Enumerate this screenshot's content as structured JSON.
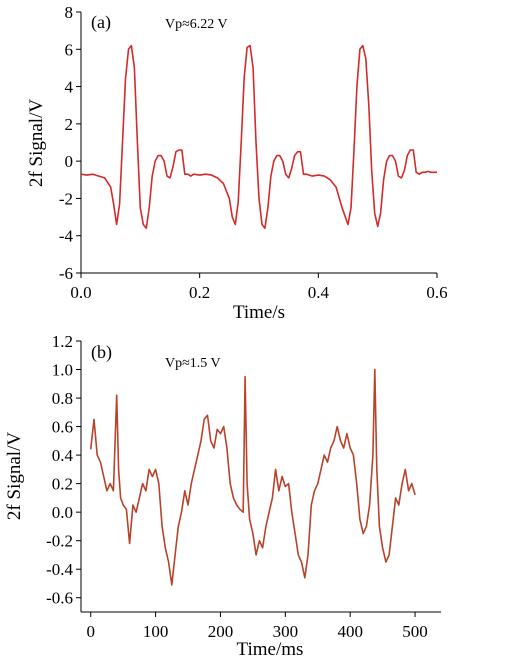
{
  "chart_data": [
    {
      "type": "line",
      "panel_label": "(a)",
      "annotation": "Vp≈6.22 V",
      "xlabel": "Time/s",
      "ylabel": "2f Signal/V",
      "xlim": [
        0.0,
        0.6
      ],
      "ylim": [
        -6,
        8
      ],
      "xticks": [
        "0.0",
        "0.2",
        "0.4",
        "0.6"
      ],
      "yticks": [
        "-6",
        "-4",
        "-2",
        "0",
        "2",
        "4",
        "6",
        "8"
      ],
      "grid": false,
      "series": [
        {
          "color": "#d42a2a",
          "x": [
            0.0,
            0.01,
            0.02,
            0.03,
            0.04,
            0.05,
            0.055,
            0.06,
            0.065,
            0.07,
            0.075,
            0.08,
            0.085,
            0.09,
            0.095,
            0.1,
            0.105,
            0.11,
            0.115,
            0.12,
            0.125,
            0.13,
            0.135,
            0.14,
            0.145,
            0.15,
            0.155,
            0.16,
            0.165,
            0.17,
            0.175,
            0.18,
            0.185,
            0.19,
            0.2,
            0.21,
            0.22,
            0.23,
            0.24,
            0.25,
            0.255,
            0.26,
            0.265,
            0.27,
            0.275,
            0.28,
            0.285,
            0.29,
            0.295,
            0.3,
            0.305,
            0.31,
            0.315,
            0.32,
            0.325,
            0.33,
            0.335,
            0.34,
            0.345,
            0.35,
            0.355,
            0.36,
            0.365,
            0.37,
            0.375,
            0.38,
            0.39,
            0.4,
            0.41,
            0.42,
            0.43,
            0.44,
            0.45,
            0.455,
            0.46,
            0.465,
            0.47,
            0.475,
            0.48,
            0.485,
            0.49,
            0.495,
            0.5,
            0.505,
            0.51,
            0.515,
            0.52,
            0.525,
            0.53,
            0.535,
            0.54,
            0.545,
            0.55,
            0.555,
            0.56,
            0.565,
            0.57,
            0.575,
            0.58,
            0.585,
            0.59,
            0.595,
            0.6
          ],
          "y": [
            -0.7,
            -0.75,
            -0.7,
            -0.8,
            -0.9,
            -1.4,
            -2.3,
            -3.4,
            -2.3,
            1.0,
            4.4,
            6.0,
            6.2,
            5.0,
            1.0,
            -2.5,
            -3.4,
            -3.6,
            -2.5,
            -0.8,
            0.0,
            0.3,
            0.3,
            0.0,
            -0.8,
            -0.9,
            -0.3,
            0.5,
            0.6,
            0.6,
            -0.7,
            -0.7,
            -0.8,
            -0.7,
            -0.75,
            -0.7,
            -0.75,
            -0.9,
            -1.2,
            -2.0,
            -3.0,
            -3.4,
            -2.2,
            1.0,
            4.5,
            6.1,
            6.2,
            5.0,
            1.0,
            -2.0,
            -3.4,
            -3.6,
            -2.5,
            -0.8,
            0.0,
            0.3,
            0.3,
            0.0,
            -0.7,
            -0.9,
            -0.4,
            0.3,
            0.5,
            0.5,
            -0.7,
            -0.7,
            -0.8,
            -0.75,
            -0.8,
            -1.0,
            -1.4,
            -2.5,
            -3.4,
            -2.5,
            0.5,
            4.0,
            6.0,
            6.2,
            5.5,
            3.0,
            -0.5,
            -2.8,
            -3.5,
            -2.8,
            -1.0,
            0.0,
            0.3,
            0.3,
            0.0,
            -0.8,
            -0.9,
            -0.5,
            0.3,
            0.6,
            0.6,
            -0.6,
            -0.7,
            -0.6,
            -0.6,
            -0.55,
            -0.6,
            -0.6,
            -0.6
          ]
        }
      ]
    },
    {
      "type": "line",
      "panel_label": "(b)",
      "annotation": "Vp≈1.5 V",
      "xlabel": "Time/ms",
      "ylabel": "2f Signal/V",
      "xlim": [
        -15,
        540
      ],
      "ylim": [
        -0.7,
        1.2
      ],
      "xticks": [
        "0",
        "100",
        "200",
        "300",
        "400",
        "500"
      ],
      "yticks": [
        "-0.6",
        "-0.4",
        "-0.2",
        "0.0",
        "0.2",
        "0.4",
        "0.6",
        "0.8",
        "1.0",
        "1.2"
      ],
      "grid": false,
      "series": [
        {
          "color": "#b8432a",
          "x": [
            0,
            5,
            10,
            15,
            20,
            25,
            30,
            35,
            40,
            43,
            46,
            50,
            55,
            60,
            65,
            70,
            75,
            80,
            85,
            90,
            95,
            100,
            105,
            110,
            115,
            120,
            125,
            130,
            135,
            140,
            145,
            150,
            155,
            160,
            165,
            170,
            175,
            180,
            185,
            190,
            195,
            200,
            205,
            210,
            215,
            220,
            225,
            230,
            235,
            238,
            241,
            245,
            250,
            255,
            260,
            265,
            270,
            275,
            280,
            285,
            290,
            295,
            300,
            305,
            310,
            315,
            320,
            325,
            330,
            335,
            340,
            345,
            350,
            355,
            360,
            365,
            370,
            375,
            380,
            385,
            390,
            395,
            400,
            405,
            410,
            415,
            420,
            425,
            430,
            435,
            438,
            441,
            445,
            450,
            455,
            460,
            465,
            470,
            475,
            480,
            485,
            490,
            495,
            500
          ],
          "y": [
            0.44,
            0.65,
            0.4,
            0.35,
            0.25,
            0.15,
            0.2,
            0.15,
            0.82,
            0.3,
            0.1,
            0.05,
            0.02,
            -0.22,
            0.05,
            0.0,
            0.1,
            0.2,
            0.15,
            0.3,
            0.25,
            0.3,
            0.2,
            -0.1,
            -0.25,
            -0.35,
            -0.51,
            -0.3,
            -0.1,
            0.0,
            0.15,
            0.05,
            0.2,
            0.3,
            0.4,
            0.5,
            0.65,
            0.68,
            0.5,
            0.45,
            0.58,
            0.55,
            0.6,
            0.45,
            0.2,
            0.1,
            0.05,
            0.02,
            0.0,
            0.95,
            0.2,
            -0.05,
            -0.15,
            -0.3,
            -0.2,
            -0.25,
            -0.1,
            0.0,
            0.1,
            0.3,
            0.15,
            0.25,
            0.18,
            0.2,
            0.0,
            -0.15,
            -0.3,
            -0.35,
            -0.46,
            -0.3,
            0.05,
            0.15,
            0.2,
            0.3,
            0.4,
            0.35,
            0.45,
            0.5,
            0.6,
            0.5,
            0.45,
            0.55,
            0.45,
            0.4,
            0.2,
            -0.05,
            -0.15,
            -0.1,
            0.05,
            0.4,
            1.0,
            0.3,
            -0.1,
            -0.25,
            -0.35,
            -0.3,
            -0.1,
            0.1,
            0.05,
            0.2,
            0.3,
            0.15,
            0.2,
            0.12
          ]
        }
      ]
    }
  ]
}
